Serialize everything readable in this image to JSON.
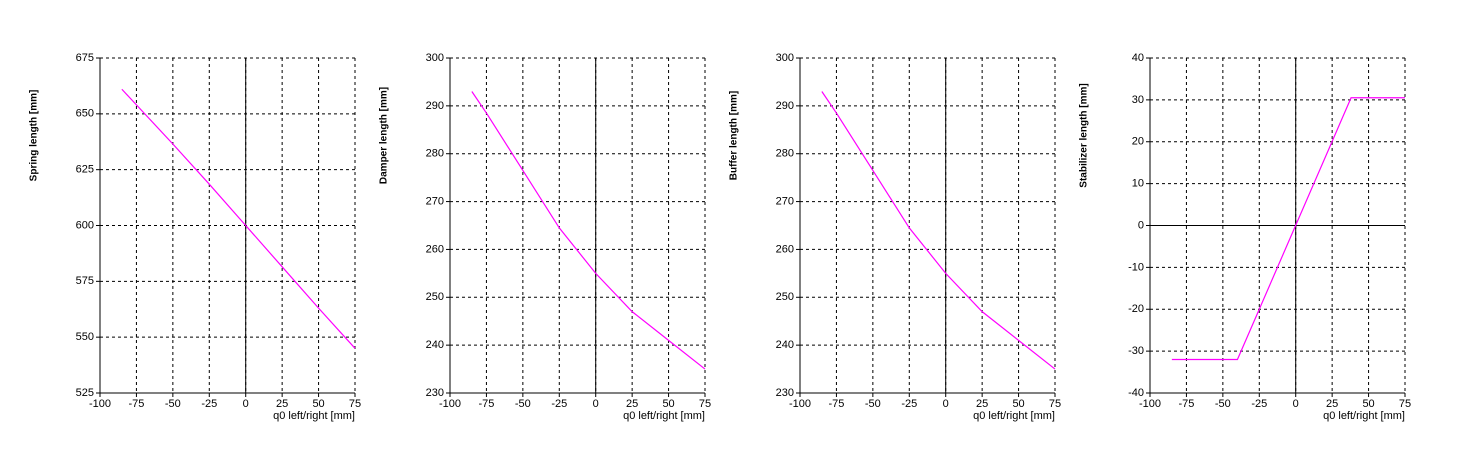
{
  "chart_data": [
    {
      "type": "line",
      "xlabel": "q0 left/right [mm]",
      "ylabel": "Spring length [mm]",
      "x": [
        -85,
        -75,
        -50,
        -25,
        0,
        25,
        50,
        75
      ],
      "values": [
        661,
        654,
        636.5,
        618.5,
        600,
        581.5,
        563,
        545
      ],
      "color": "#ff00ff",
      "xlim": [
        -100,
        75
      ],
      "xticks": [
        -100,
        -75,
        -50,
        -25,
        0,
        25,
        50,
        75
      ],
      "ylim": [
        525,
        675
      ],
      "yticks": [
        525,
        550,
        575,
        600,
        625,
        650,
        675
      ],
      "grid": true
    },
    {
      "type": "line",
      "xlabel": "q0 left/right [mm]",
      "ylabel": "Damper length [mm]",
      "x": [
        -85,
        -75,
        -50,
        -25,
        0,
        25,
        50,
        75
      ],
      "values": [
        293,
        288.5,
        276.5,
        264.5,
        255,
        247,
        241,
        235
      ],
      "color": "#ff00ff",
      "xlim": [
        -100,
        75
      ],
      "xticks": [
        -100,
        -75,
        -50,
        -25,
        0,
        25,
        50,
        75
      ],
      "ylim": [
        230,
        300
      ],
      "yticks": [
        230,
        240,
        250,
        260,
        270,
        280,
        290,
        300
      ],
      "grid": true
    },
    {
      "type": "line",
      "xlabel": "q0 left/right [mm]",
      "ylabel": "Buffer length [mm]",
      "x": [
        -85,
        -75,
        -50,
        -25,
        0,
        25,
        50,
        75
      ],
      "values": [
        293,
        288.5,
        276.5,
        264.5,
        255,
        247,
        241,
        235
      ],
      "color": "#ff00ff",
      "xlim": [
        -100,
        75
      ],
      "xticks": [
        -100,
        -75,
        -50,
        -25,
        0,
        25,
        50,
        75
      ],
      "ylim": [
        230,
        300
      ],
      "yticks": [
        230,
        240,
        250,
        260,
        270,
        280,
        290,
        300
      ],
      "grid": true
    },
    {
      "type": "line",
      "xlabel": "q0 left/right [mm]",
      "ylabel": "Stabilizer length [mm]",
      "x": [
        -85,
        -40,
        38,
        75
      ],
      "values": [
        -32,
        -32,
        30.5,
        30.5
      ],
      "color": "#ff00ff",
      "xlim": [
        -100,
        75
      ],
      "xticks": [
        -100,
        -75,
        -50,
        -25,
        0,
        25,
        50,
        75
      ],
      "ylim": [
        -40,
        40
      ],
      "yticks": [
        -40,
        -30,
        -20,
        -10,
        0,
        10,
        20,
        30,
        40
      ],
      "grid": true
    }
  ]
}
